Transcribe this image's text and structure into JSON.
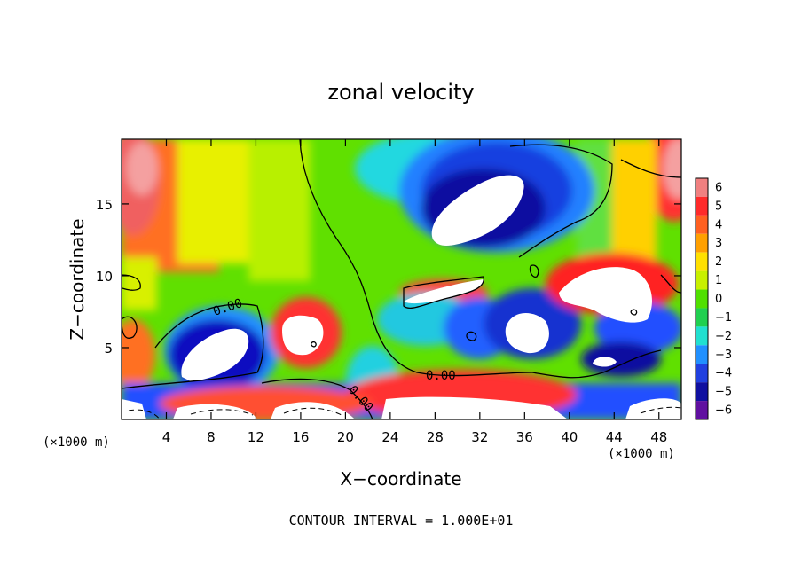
{
  "chart_data": {
    "type": "heatmap",
    "title": "zonal velocity",
    "xlabel": "X−coordinate",
    "ylabel": "Z−coordinate",
    "x_unit_label": "(×1000 m)",
    "z_unit_label": "(×1000 m)",
    "footer": "CONTOUR INTERVAL = 1.000E+01",
    "xlim": [
      0,
      50
    ],
    "ylim": [
      0,
      19.5
    ],
    "x_ticks": [
      4,
      8,
      12,
      16,
      20,
      24,
      28,
      32,
      36,
      40,
      44,
      48
    ],
    "y_ticks": [
      5,
      10,
      15
    ],
    "colorbar": {
      "levels": [
        6,
        5,
        4,
        3,
        2,
        1,
        0,
        -1,
        -2,
        -3,
        -4,
        -5,
        -6
      ],
      "labels": [
        "6",
        "5",
        "4",
        "3",
        "2",
        "1",
        "0",
        "−1",
        "−2",
        "−3",
        "−4",
        "−5",
        "−6"
      ],
      "colors": [
        "#f08080",
        "#ff2a2a",
        "#ff6020",
        "#ffa000",
        "#ffe000",
        "#c8f000",
        "#50e000",
        "#20d050",
        "#20e0d0",
        "#2090ff",
        "#2040e0",
        "#1010a0",
        "#6010a0"
      ]
    },
    "contour_labels": [
      "0.00",
      "0.00",
      "0.00"
    ]
  }
}
